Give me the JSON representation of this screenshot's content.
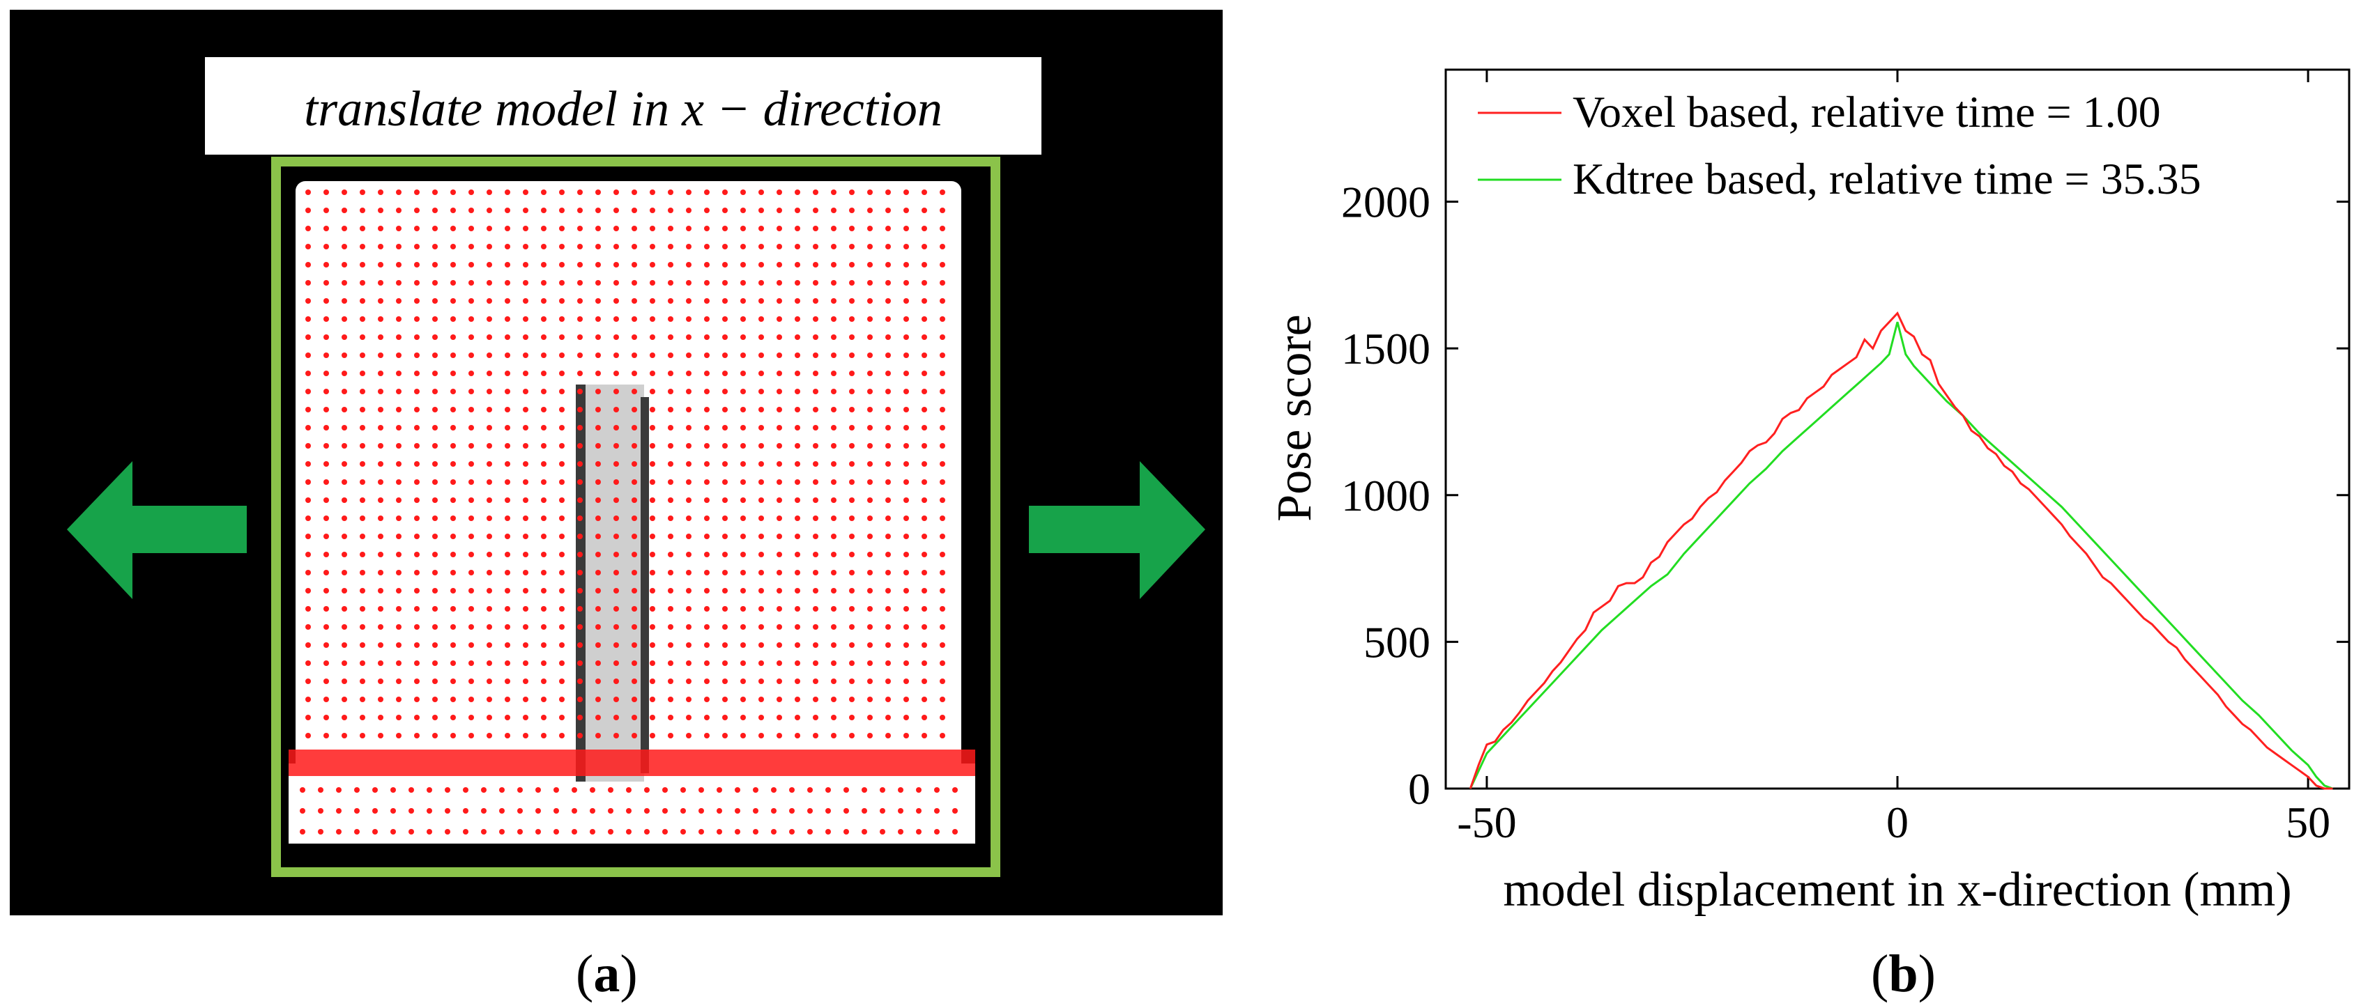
{
  "panel_a": {
    "banner": "translate model in x − direction",
    "caption_letter": "a",
    "arrow_color": "#17a34a",
    "frame_color": "#8bc34a",
    "dot_color": "#ff1a1a",
    "icons": [
      "arrow-left-icon",
      "arrow-right-icon"
    ]
  },
  "panel_b": {
    "caption_letter": "b"
  },
  "chart_data": {
    "type": "line",
    "title": "",
    "xlabel": "model displacement in x-direction (mm)",
    "ylabel": "Pose score",
    "xlim": [
      -55,
      55
    ],
    "ylim": [
      0,
      2450
    ],
    "xticks": [
      -50,
      0,
      50
    ],
    "yticks": [
      0,
      500,
      1000,
      1500,
      2000
    ],
    "grid": false,
    "legend_position": "top-left",
    "series": [
      {
        "name": "Voxel based, relative time = 1.00",
        "color": "#ff2020",
        "x": [
          -52,
          -51,
          -50,
          -49,
          -48,
          -47,
          -46,
          -45,
          -44,
          -43,
          -42,
          -41,
          -40,
          -39,
          -38,
          -37,
          -36,
          -35,
          -34,
          -33,
          -32,
          -31,
          -30,
          -29,
          -28,
          -27,
          -26,
          -25,
          -24,
          -23,
          -22,
          -21,
          -20,
          -19,
          -18,
          -17,
          -16,
          -15,
          -14,
          -13,
          -12,
          -11,
          -10,
          -9,
          -8,
          -7,
          -6,
          -5,
          -4,
          -3,
          -2,
          -1,
          0,
          1,
          2,
          3,
          4,
          5,
          6,
          7,
          8,
          9,
          10,
          11,
          12,
          13,
          14,
          15,
          16,
          17,
          18,
          19,
          20,
          21,
          22,
          23,
          24,
          25,
          26,
          27,
          28,
          29,
          30,
          31,
          32,
          33,
          34,
          35,
          36,
          37,
          38,
          39,
          40,
          41,
          42,
          43,
          44,
          45,
          46,
          47,
          48,
          49,
          50,
          51,
          52,
          53
        ],
        "y": [
          0,
          80,
          150,
          160,
          200,
          225,
          260,
          300,
          330,
          360,
          400,
          430,
          470,
          510,
          540,
          600,
          620,
          640,
          690,
          700,
          700,
          720,
          770,
          790,
          840,
          870,
          900,
          920,
          960,
          990,
          1010,
          1050,
          1080,
          1110,
          1150,
          1170,
          1180,
          1210,
          1260,
          1280,
          1290,
          1330,
          1350,
          1370,
          1410,
          1430,
          1450,
          1470,
          1530,
          1500,
          1560,
          1590,
          1620,
          1560,
          1540,
          1480,
          1460,
          1380,
          1340,
          1300,
          1270,
          1220,
          1200,
          1160,
          1140,
          1100,
          1080,
          1040,
          1020,
          990,
          960,
          930,
          900,
          860,
          830,
          800,
          760,
          720,
          700,
          670,
          640,
          610,
          580,
          560,
          530,
          500,
          480,
          440,
          410,
          380,
          350,
          320,
          280,
          250,
          220,
          200,
          170,
          140,
          120,
          100,
          80,
          60,
          40,
          10,
          0,
          0
        ],
        "end_label": null
      },
      {
        "name": "Kdtree based, relative time = 35.35",
        "color": "#22dd22",
        "x": [
          -52,
          -50,
          -48,
          -46,
          -44,
          -42,
          -40,
          -38,
          -36,
          -34,
          -32,
          -30,
          -28,
          -26,
          -24,
          -22,
          -20,
          -18,
          -16,
          -14,
          -12,
          -10,
          -8,
          -6,
          -4,
          -2,
          -1,
          0,
          1,
          2,
          4,
          6,
          8,
          10,
          12,
          14,
          16,
          18,
          20,
          22,
          24,
          26,
          28,
          30,
          32,
          34,
          36,
          38,
          40,
          42,
          44,
          46,
          48,
          50,
          51,
          52,
          53
        ],
        "y": [
          0,
          120,
          180,
          240,
          300,
          360,
          420,
          480,
          540,
          590,
          640,
          690,
          730,
          800,
          860,
          920,
          980,
          1040,
          1090,
          1150,
          1200,
          1250,
          1300,
          1350,
          1400,
          1450,
          1480,
          1590,
          1480,
          1440,
          1380,
          1320,
          1270,
          1210,
          1160,
          1110,
          1060,
          1010,
          960,
          900,
          840,
          780,
          720,
          660,
          600,
          540,
          480,
          420,
          360,
          300,
          250,
          190,
          130,
          80,
          40,
          10,
          0
        ]
      }
    ]
  }
}
